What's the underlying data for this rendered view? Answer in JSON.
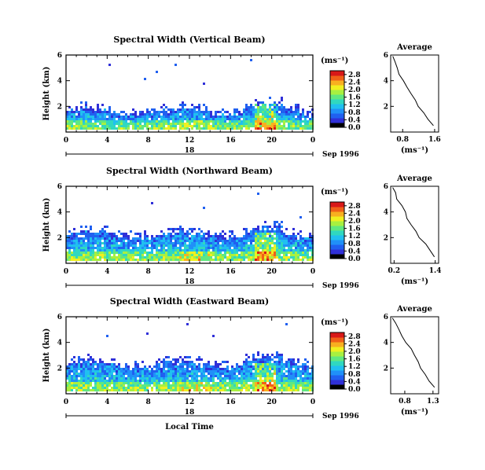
{
  "colorbar_unit": "(ms⁻¹)",
  "chart_data": [
    {
      "type": "heatmap",
      "title": "Spectral Width (Vertical Beam)",
      "ylabel": "Height (km)",
      "yticks": [
        "2",
        "4",
        "6"
      ],
      "ylim": [
        0,
        6
      ],
      "xticks": [
        "0",
        "4",
        "8",
        "12",
        "16",
        "20",
        "0"
      ],
      "xlim": [
        0,
        24
      ],
      "date_label": "Sep 1996",
      "date_tick": "18",
      "colorbar": {
        "ticks": [
          "0.0",
          "0.4",
          "0.8",
          "1.2",
          "1.6",
          "2.0",
          "2.4",
          "2.8"
        ],
        "range": [
          0,
          3.0
        ]
      },
      "palette": [
        "#000000",
        "#3030d8",
        "#2060f0",
        "#2090f8",
        "#20c0f0",
        "#30d8c0",
        "#60e880",
        "#a8f040",
        "#f0f020",
        "#f8b020",
        "#f06018",
        "#d81818"
      ],
      "cloud": {
        "floor_km": 0.3,
        "top_km": 1.7,
        "heavy_top_km": 1.0
      },
      "average": {
        "title": "Average",
        "xlabel": "(ms⁻¹)",
        "xticks": [
          "0.8",
          "1.6"
        ],
        "xlim": [
          0.5,
          1.7
        ],
        "yticks": [
          "2",
          "4",
          "6"
        ],
        "ylim": [
          0,
          6
        ],
        "profile": [
          [
            0.55,
            5.9
          ],
          [
            0.6,
            5.5
          ],
          [
            0.65,
            5.0
          ],
          [
            0.72,
            4.5
          ],
          [
            0.8,
            4.0
          ],
          [
            0.9,
            3.5
          ],
          [
            1.0,
            3.0
          ],
          [
            1.1,
            2.5
          ],
          [
            1.2,
            2.0
          ],
          [
            1.32,
            1.5
          ],
          [
            1.45,
            1.0
          ],
          [
            1.58,
            0.5
          ]
        ]
      }
    },
    {
      "type": "heatmap",
      "title": "Spectral Width (Northward Beam)",
      "ylabel": "Height (km)",
      "yticks": [
        "2",
        "4",
        "6"
      ],
      "ylim": [
        0,
        6
      ],
      "xticks": [
        "0",
        "4",
        "8",
        "12",
        "16",
        "20",
        "0"
      ],
      "xlim": [
        0,
        24
      ],
      "date_label": "Sep 1996",
      "date_tick": "18",
      "colorbar": {
        "ticks": [
          "0.0",
          "0.4",
          "0.8",
          "1.2",
          "1.6",
          "2.0",
          "2.4",
          "2.8"
        ],
        "range": [
          0,
          3.0
        ]
      },
      "palette": [
        "#000000",
        "#3030d8",
        "#2060f0",
        "#2090f8",
        "#20c0f0",
        "#30d8c0",
        "#60e880",
        "#a8f040",
        "#f0f020",
        "#f8b020",
        "#f06018",
        "#d81818"
      ],
      "cloud": {
        "floor_km": 0.3,
        "top_km": 2.3,
        "heavy_top_km": 1.1
      },
      "average": {
        "title": "Average",
        "xlabel": "(ms⁻¹)",
        "xticks": [
          "0.2",
          "1.4"
        ],
        "xlim": [
          0.1,
          1.5
        ],
        "yticks": [
          "2",
          "4",
          "6"
        ],
        "ylim": [
          0,
          6
        ],
        "profile": [
          [
            0.15,
            5.9
          ],
          [
            0.22,
            5.5
          ],
          [
            0.3,
            5.0
          ],
          [
            0.4,
            4.5
          ],
          [
            0.5,
            4.0
          ],
          [
            0.6,
            3.5
          ],
          [
            0.7,
            3.0
          ],
          [
            0.82,
            2.5
          ],
          [
            0.95,
            2.0
          ],
          [
            1.1,
            1.5
          ],
          [
            1.25,
            1.0
          ],
          [
            1.4,
            0.5
          ]
        ]
      }
    },
    {
      "type": "heatmap",
      "title": "Spectral Width (Eastward Beam)",
      "ylabel": "Height (km)",
      "yticks": [
        "2",
        "4",
        "6"
      ],
      "ylim": [
        0,
        6
      ],
      "xticks": [
        "0",
        "4",
        "8",
        "12",
        "16",
        "20",
        "0"
      ],
      "xlim": [
        0,
        24
      ],
      "date_label": "Sep 1996",
      "date_tick": "18",
      "xlabel": "Local Time",
      "colorbar": {
        "ticks": [
          "0.0",
          "0.4",
          "0.8",
          "1.2",
          "1.6",
          "2.0",
          "2.4",
          "2.8"
        ],
        "range": [
          0,
          3.0
        ]
      },
      "palette": [
        "#000000",
        "#3030d8",
        "#2060f0",
        "#2090f8",
        "#20c0f0",
        "#30d8c0",
        "#60e880",
        "#a8f040",
        "#f0f020",
        "#f8b020",
        "#f06018",
        "#d81818"
      ],
      "cloud": {
        "floor_km": 0.3,
        "top_km": 2.4,
        "heavy_top_km": 1.0
      },
      "average": {
        "title": "Average",
        "xlabel": "(ms⁻¹)",
        "xticks": [
          "0.8",
          "1.3"
        ],
        "xlim": [
          0.55,
          1.4
        ],
        "yticks": [
          "2",
          "4",
          "6"
        ],
        "ylim": [
          0,
          6
        ],
        "profile": [
          [
            0.6,
            5.9
          ],
          [
            0.65,
            5.5
          ],
          [
            0.7,
            5.0
          ],
          [
            0.76,
            4.5
          ],
          [
            0.83,
            4.0
          ],
          [
            0.9,
            3.5
          ],
          [
            0.97,
            3.0
          ],
          [
            1.03,
            2.5
          ],
          [
            1.1,
            2.0
          ],
          [
            1.17,
            1.5
          ],
          [
            1.24,
            1.0
          ],
          [
            1.32,
            0.5
          ]
        ]
      }
    }
  ]
}
